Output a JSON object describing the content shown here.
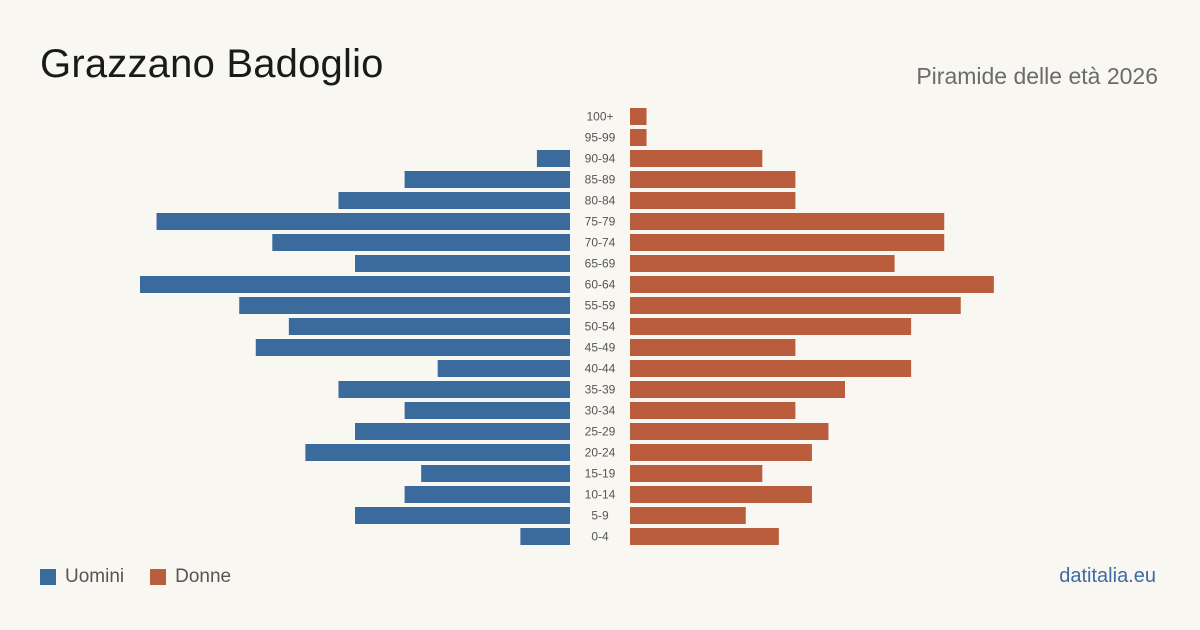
{
  "header": {
    "title": "Grazzano Badoglio",
    "subtitle": "Piramide delle età 2026"
  },
  "legend": {
    "men_label": "Uomini",
    "women_label": "Donne"
  },
  "footer": {
    "source": "datitalia.eu"
  },
  "colors": {
    "men": "#3b6a9c",
    "women": "#b95d3d",
    "background": "#f9f7f2"
  },
  "chart_data": {
    "type": "bar",
    "orientation": "horizontal",
    "categories": [
      "100+",
      "95-99",
      "90-94",
      "85-89",
      "80-84",
      "75-79",
      "70-74",
      "65-69",
      "60-64",
      "55-59",
      "50-54",
      "45-49",
      "40-44",
      "35-39",
      "30-34",
      "25-29",
      "20-24",
      "15-19",
      "10-14",
      "5-9",
      "0-4"
    ],
    "series": [
      {
        "name": "Uomini",
        "values": [
          0,
          0,
          2,
          10,
          14,
          25,
          18,
          13,
          26,
          20,
          17,
          19,
          8,
          14,
          10,
          13,
          16,
          9,
          10,
          13,
          3
        ]
      },
      {
        "name": "Donne",
        "values": [
          1,
          1,
          8,
          10,
          10,
          19,
          19,
          16,
          22,
          20,
          17,
          10,
          17,
          13,
          10,
          12,
          11,
          8,
          11,
          7,
          9
        ]
      }
    ],
    "legend_position": "bottom-left",
    "grid": false
  }
}
